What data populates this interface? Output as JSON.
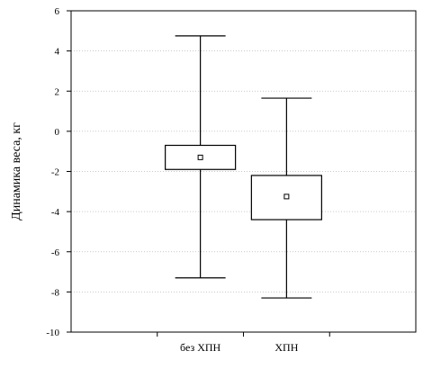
{
  "chart_data": {
    "type": "boxplot",
    "ylabel": "Динамика веса, кг",
    "xlabel": "",
    "ylim": [
      -10,
      6
    ],
    "yticks": [
      -10,
      -8,
      -6,
      -4,
      -2,
      0,
      2,
      4,
      6
    ],
    "grid": true,
    "categories": [
      "без ХПН",
      "ХПН"
    ],
    "series": [
      {
        "category": "без ХПН",
        "min": -7.3,
        "q1": -1.9,
        "median": -1.3,
        "q3": -0.7,
        "max": 4.75
      },
      {
        "category": "ХПН",
        "min": -8.3,
        "q1": -4.4,
        "median": -3.25,
        "q3": -2.2,
        "max": 1.65
      }
    ]
  }
}
